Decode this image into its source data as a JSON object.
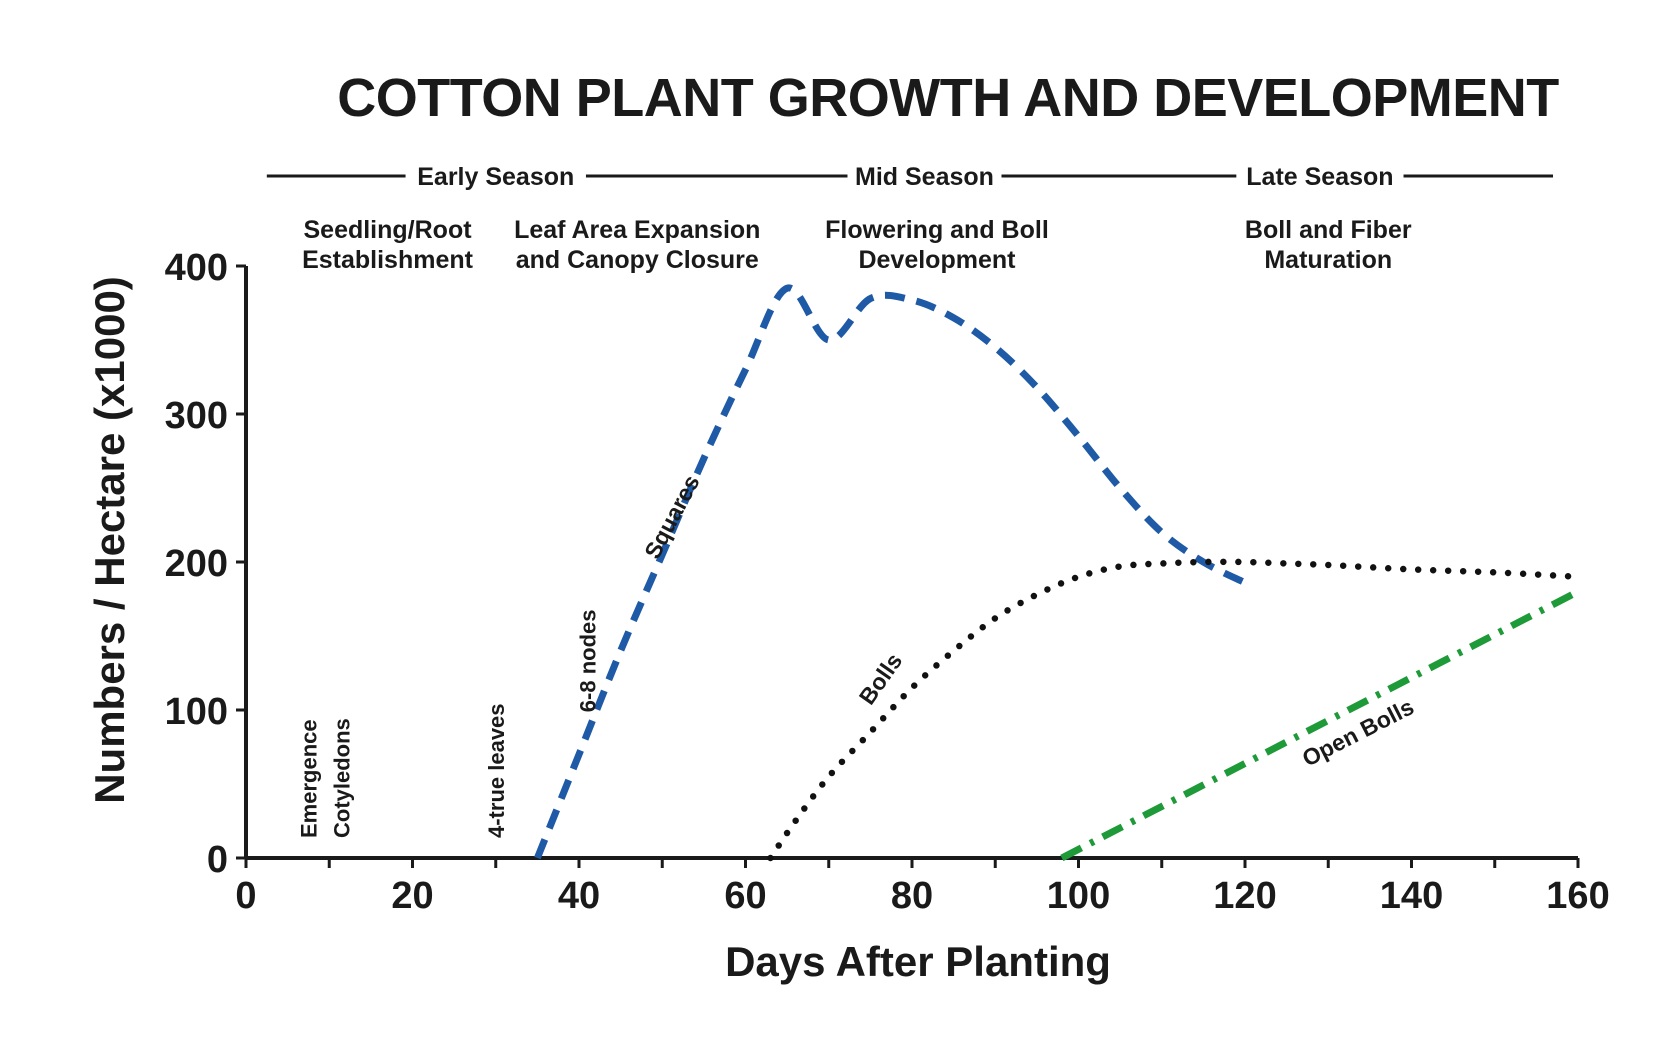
{
  "chart_data": {
    "type": "line",
    "title": "COTTON PLANT GROWTH AND DEVELOPMENT",
    "xlabel": "Days After Planting",
    "ylabel": "Numbers / Hectare (x1000)",
    "xlim": [
      0,
      160
    ],
    "ylim": [
      0,
      400
    ],
    "xticks": [
      "0",
      "20",
      "40",
      "60",
      "80",
      "100",
      "120",
      "140",
      "160"
    ],
    "yticks": [
      "0",
      "100",
      "200",
      "300",
      "400"
    ],
    "grid": false,
    "seasons": [
      {
        "label": "Early Season",
        "start": 2.5,
        "end": 60
      },
      {
        "label": "Mid Season",
        "start": 60,
        "end": 100
      },
      {
        "label": "Late Season",
        "start": 100,
        "end": 157
      }
    ],
    "phases": [
      {
        "line1": "Seedling/Root",
        "line2": "Establishment",
        "x": 17
      },
      {
        "line1": "Leaf Area Expansion",
        "line2": "and Canopy Closure",
        "x": 47
      },
      {
        "line1": "Flowering and Boll",
        "line2": "Development",
        "x": 83
      },
      {
        "line1": "Boll and Fiber",
        "line2": "Maturation",
        "x": 130
      }
    ],
    "annotations": [
      {
        "text": "Emergence",
        "x": 7.5,
        "y": 0
      },
      {
        "text": "Cotyledons",
        "x": 11.5,
        "y": 0
      },
      {
        "text": "4-true leaves",
        "x": 30,
        "y": 0
      },
      {
        "text": "6-8 nodes",
        "x": 41,
        "y": 85
      }
    ],
    "series": [
      {
        "name": "Squares",
        "color": "#1f5aa6",
        "style": "dashed",
        "label_at": {
          "x": 52,
          "y": 228
        },
        "x": [
          35,
          40,
          45,
          50,
          55,
          60,
          65,
          70,
          75,
          80,
          85,
          90,
          95,
          100,
          105,
          110,
          115,
          120
        ],
        "y": [
          0,
          70,
          140,
          205,
          270,
          330,
          385,
          350,
          378,
          377,
          365,
          345,
          318,
          285,
          250,
          220,
          200,
          186
        ]
      },
      {
        "name": "Bolls",
        "color": "#111111",
        "style": "dotted",
        "label_at": {
          "x": 77,
          "y": 118
        },
        "x": [
          63,
          66,
          70,
          75,
          80,
          85,
          90,
          95,
          100,
          105,
          110,
          115,
          120,
          125,
          130,
          140,
          150,
          160
        ],
        "y": [
          0,
          25,
          55,
          85,
          115,
          140,
          162,
          178,
          190,
          197,
          199,
          200,
          200,
          199,
          198,
          195,
          193,
          190
        ]
      },
      {
        "name": "Open Bolls",
        "color": "#1e9a38",
        "style": "dashdot",
        "label_at": {
          "x": 134,
          "y": 80
        },
        "x": [
          98,
          160
        ],
        "y": [
          0,
          180
        ]
      }
    ]
  }
}
